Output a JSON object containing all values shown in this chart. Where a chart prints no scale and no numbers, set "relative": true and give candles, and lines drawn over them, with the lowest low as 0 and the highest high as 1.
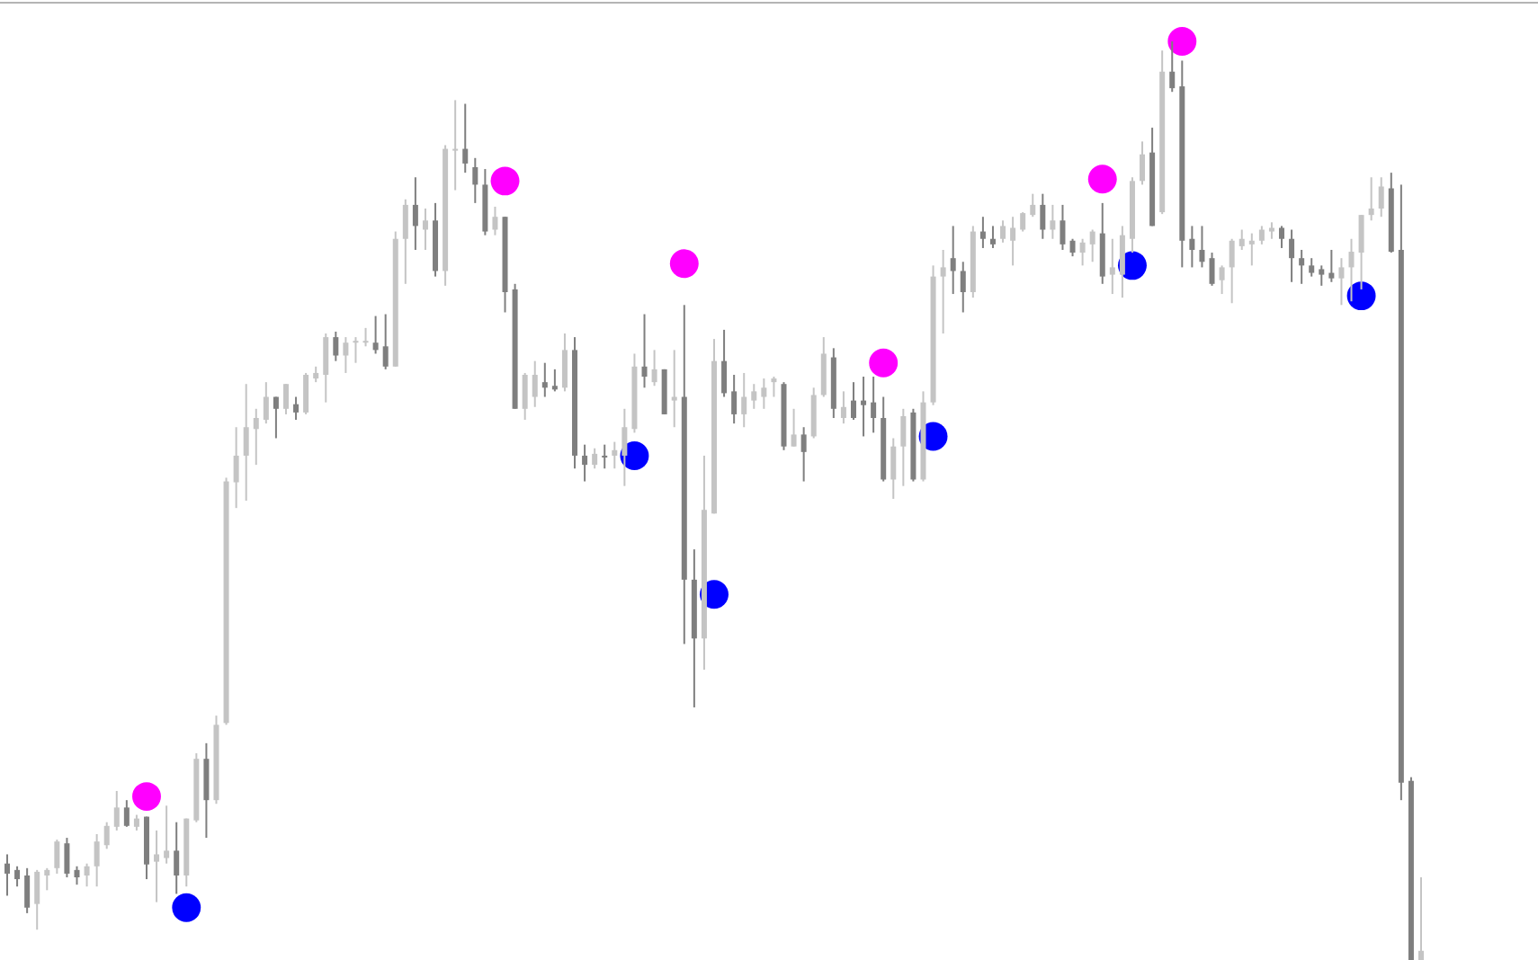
{
  "chart_data": {
    "type": "candlestick",
    "relative": true,
    "marker": "circle",
    "colors": [
      "#7f7f7f",
      "#7f7f7f",
      "#7f7f7f",
      "#c4c4c4",
      "#c4c4c4",
      "#c4c4c4",
      "#7f7f7f",
      "#7f7f7f",
      "#c4c4c4",
      "#c4c4c4",
      "#c4c4c4",
      "#c4c4c4",
      "#7f7f7f",
      "#c4c4c4",
      "#7f7f7f",
      "#c4c4c4",
      "#c4c4c4",
      "#7f7f7f",
      "#c4c4c4",
      "#c4c4c4",
      "#7f7f7f",
      "#c4c4c4",
      "#c4c4c4",
      "#c4c4c4",
      "#c4c4c4",
      "#c4c4c4",
      "#c4c4c4",
      "#7f7f7f",
      "#c4c4c4",
      "#7f7f7f",
      "#c4c4c4",
      "#c4c4c4",
      "#c4c4c4",
      "#7f7f7f",
      "#c4c4c4",
      "#c4c4c4",
      "#c4c4c4",
      "#7f7f7f",
      "#7f7f7f",
      "#c4c4c4",
      "#c4c4c4",
      "#7f7f7f",
      "#c4c4c4",
      "#7f7f7f",
      "#c4c4c4",
      "#c4c4c4",
      "#7f7f7f",
      "#7f7f7f",
      "#7f7f7f",
      "#c4c4c4",
      "#7f7f7f",
      "#7f7f7f",
      "#c4c4c4",
      "#c4c4c4",
      "#7f7f7f",
      "#7f7f7f",
      "#c4c4c4",
      "#7f7f7f",
      "#7f7f7f",
      "#c4c4c4",
      "#7f7f7f",
      "#c4c4c4",
      "#c4c4c4",
      "#c4c4c4",
      "#7f7f7f",
      "#c4c4c4",
      "#7f7f7f",
      "#c4c4c4",
      "#7f7f7f",
      "#7f7f7f",
      "#c4c4c4",
      "#c4c4c4",
      "#7f7f7f",
      "#7f7f7f",
      "#c4c4c4",
      "#c4c4c4",
      "#c4c4c4",
      "#c4c4c4",
      "#7f7f7f",
      "#c4c4c4",
      "#7f7f7f",
      "#c4c4c4",
      "#c4c4c4",
      "#7f7f7f",
      "#c4c4c4",
      "#7f7f7f",
      "#7f7f7f",
      "#7f7f7f",
      "#7f7f7f",
      "#c4c4c4",
      "#c4c4c4",
      "#7f7f7f",
      "#c4c4c4",
      "#c4c4c4",
      "#c4c4c4",
      "#7f7f7f",
      "#7f7f7f",
      "#c4c4c4",
      "#7f7f7f",
      "#7f7f7f",
      "#c4c4c4",
      "#c4c4c4",
      "#c4c4c4",
      "#c4c4c4",
      "#7f7f7f",
      "#c4c4c4",
      "#7f7f7f",
      "#7f7f7f",
      "#c4c4c4",
      "#c4c4c4",
      "#7f7f7f",
      "#c4c4c4",
      "#c4c4c4",
      "#c4c4c4",
      "#c4c4c4",
      "#7f7f7f",
      "#c4c4c4",
      "#7f7f7f",
      "#7f7f7f",
      "#7f7f7f",
      "#7f7f7f",
      "#7f7f7f",
      "#c4c4c4",
      "#c4c4c4",
      "#c4c4c4",
      "#c4c4c4",
      "#c4c4c4",
      "#c4c4c4",
      "#7f7f7f",
      "#7f7f7f",
      "#7f7f7f",
      "#7f7f7f",
      "#7f7f7f",
      "#7f7f7f",
      "#c4c4c4",
      "#c4c4c4",
      "#c4c4c4",
      "#c4c4c4",
      "#c4c4c4",
      "#7f7f7f",
      "#7f7f7f",
      "#7f7f7f",
      "#c4c4c4"
    ],
    "categories": [
      null,
      null,
      null,
      null,
      null,
      null,
      null,
      null,
      null,
      null,
      null,
      null,
      null,
      null,
      null,
      null,
      null,
      null,
      null,
      null,
      null,
      null,
      null,
      null,
      null,
      null,
      null,
      null,
      null,
      null,
      null,
      null,
      null,
      null,
      null,
      null,
      null,
      null,
      null,
      null,
      null,
      null,
      null,
      null,
      null,
      null,
      null,
      null,
      null,
      null,
      null,
      null,
      null,
      null,
      null,
      null,
      null,
      null,
      null,
      null,
      null,
      null,
      null,
      null,
      null,
      null,
      null,
      null,
      null,
      null,
      null,
      null,
      null,
      null,
      null,
      null,
      null,
      null,
      null,
      null,
      null,
      null,
      null,
      null,
      null,
      null,
      null,
      null,
      null,
      null,
      null,
      null,
      null,
      null,
      null,
      null,
      null,
      null,
      null,
      null,
      null,
      null,
      null,
      null,
      null,
      null,
      null,
      null,
      null,
      null,
      null,
      null,
      null,
      null,
      null,
      null,
      null,
      null,
      null,
      null,
      null,
      null,
      null,
      null,
      null,
      null,
      null,
      null,
      null,
      null,
      null,
      null,
      null,
      null,
      null,
      null,
      null,
      null,
      null,
      null,
      null,
      null,
      null
    ],
    "ohlc": [
      [
        0.105,
        0.115,
        0.07,
        0.094
      ],
      [
        0.098,
        0.102,
        0.08,
        0.088
      ],
      [
        0.092,
        0.1,
        0.051,
        0.057
      ],
      [
        0.061,
        0.098,
        0.033,
        0.096
      ],
      [
        0.092,
        0.1,
        0.076,
        0.098
      ],
      [
        0.1,
        0.131,
        0.094,
        0.129
      ],
      [
        0.127,
        0.133,
        0.09,
        0.094
      ],
      [
        0.098,
        0.102,
        0.082,
        0.09
      ],
      [
        0.092,
        0.105,
        0.08,
        0.102
      ],
      [
        0.102,
        0.137,
        0.08,
        0.129
      ],
      [
        0.125,
        0.15,
        0.121,
        0.146
      ],
      [
        0.145,
        0.184,
        0.141,
        0.166
      ],
      [
        0.166,
        0.174,
        0.145,
        0.146
      ],
      [
        0.145,
        0.158,
        0.141,
        0.154
      ],
      [
        0.156,
        0.156,
        0.088,
        0.104
      ],
      [
        0.107,
        0.141,
        0.063,
        0.115
      ],
      [
        0.111,
        0.168,
        0.105,
        0.119
      ],
      [
        0.119,
        0.15,
        0.072,
        0.092
      ],
      [
        0.092,
        0.154,
        0.08,
        0.154
      ],
      [
        0.152,
        0.225,
        0.15,
        0.219
      ],
      [
        0.219,
        0.236,
        0.133,
        0.174
      ],
      [
        0.174,
        0.266,
        0.17,
        0.256
      ],
      [
        0.258,
        0.525,
        0.256,
        0.521
      ],
      [
        0.52,
        0.58,
        0.492,
        0.549
      ],
      [
        0.549,
        0.627,
        0.5,
        0.58
      ],
      [
        0.578,
        0.6,
        0.539,
        0.59
      ],
      [
        0.588,
        0.629,
        0.584,
        0.613
      ],
      [
        0.613,
        0.613,
        0.568,
        0.6
      ],
      [
        0.6,
        0.627,
        0.594,
        0.627
      ],
      [
        0.605,
        0.613,
        0.588,
        0.596
      ],
      [
        0.596,
        0.639,
        0.594,
        0.637
      ],
      [
        0.633,
        0.646,
        0.629,
        0.639
      ],
      [
        0.637,
        0.682,
        0.607,
        0.678
      ],
      [
        0.678,
        0.684,
        0.652,
        0.658
      ],
      [
        0.658,
        0.678,
        0.639,
        0.672
      ],
      [
        0.672,
        0.678,
        0.65,
        0.674
      ],
      [
        0.672,
        0.688,
        0.668,
        0.674
      ],
      [
        0.672,
        0.701,
        0.66,
        0.664
      ],
      [
        0.668,
        0.703,
        0.643,
        0.646
      ],
      [
        0.646,
        0.793,
        0.646,
        0.785
      ],
      [
        0.785,
        0.828,
        0.736,
        0.822
      ],
      [
        0.822,
        0.852,
        0.773,
        0.799
      ],
      [
        0.795,
        0.818,
        0.773,
        0.805
      ],
      [
        0.805,
        0.824,
        0.744,
        0.75
      ],
      [
        0.75,
        0.887,
        0.734,
        0.883
      ],
      [
        0.881,
        0.936,
        0.838,
        0.883
      ],
      [
        0.883,
        0.932,
        0.857,
        0.867
      ],
      [
        0.863,
        0.873,
        0.824,
        0.844
      ],
      [
        0.844,
        0.861,
        0.789,
        0.793
      ],
      [
        0.795,
        0.82,
        0.789,
        0.809
      ],
      [
        0.809,
        0.809,
        0.705,
        0.727
      ],
      [
        0.73,
        0.736,
        0.6,
        0.6
      ],
      [
        0.6,
        0.639,
        0.588,
        0.637
      ],
      [
        0.613,
        0.652,
        0.602,
        0.637
      ],
      [
        0.629,
        0.65,
        0.613,
        0.623
      ],
      [
        0.625,
        0.643,
        0.619,
        0.621
      ],
      [
        0.623,
        0.682,
        0.619,
        0.664
      ],
      [
        0.664,
        0.678,
        0.535,
        0.549
      ],
      [
        0.549,
        0.561,
        0.521,
        0.539
      ],
      [
        0.539,
        0.557,
        0.535,
        0.551
      ],
      [
        0.549,
        0.561,
        0.535,
        0.547
      ],
      [
        0.549,
        0.564,
        0.535,
        0.555
      ],
      [
        0.549,
        0.6,
        0.516,
        0.58
      ],
      [
        0.578,
        0.66,
        0.574,
        0.646
      ],
      [
        0.646,
        0.703,
        0.623,
        0.635
      ],
      [
        0.629,
        0.664,
        0.625,
        0.643
      ],
      [
        0.643,
        0.643,
        0.594,
        0.594
      ],
      [
        0.609,
        0.664,
        0.58,
        0.613
      ],
      [
        0.613,
        0.713,
        0.344,
        0.414
      ],
      [
        0.414,
        0.447,
        0.275,
        0.35
      ],
      [
        0.35,
        0.549,
        0.316,
        0.49
      ],
      [
        0.486,
        0.676,
        0.486,
        0.652
      ],
      [
        0.652,
        0.686,
        0.613,
        0.617
      ],
      [
        0.619,
        0.637,
        0.584,
        0.594
      ],
      [
        0.594,
        0.639,
        0.58,
        0.613
      ],
      [
        0.609,
        0.627,
        0.6,
        0.619
      ],
      [
        0.613,
        0.633,
        0.6,
        0.623
      ],
      [
        0.629,
        0.635,
        0.613,
        0.633
      ],
      [
        0.627,
        0.629,
        0.555,
        0.559
      ],
      [
        0.559,
        0.6,
        0.559,
        0.572
      ],
      [
        0.572,
        0.58,
        0.521,
        0.553
      ],
      [
        0.57,
        0.623,
        0.568,
        0.615
      ],
      [
        0.615,
        0.678,
        0.613,
        0.66
      ],
      [
        0.656,
        0.666,
        0.59,
        0.6
      ],
      [
        0.59,
        0.619,
        0.584,
        0.602
      ],
      [
        0.609,
        0.629,
        0.588,
        0.59
      ],
      [
        0.609,
        0.635,
        0.57,
        0.604
      ],
      [
        0.607,
        0.635,
        0.574,
        0.59
      ],
      [
        0.59,
        0.613,
        0.521,
        0.523
      ],
      [
        0.523,
        0.568,
        0.502,
        0.559
      ],
      [
        0.559,
        0.6,
        0.516,
        0.592
      ],
      [
        0.596,
        0.6,
        0.521,
        0.523
      ],
      [
        0.523,
        0.619,
        0.521,
        0.607
      ],
      [
        0.607,
        0.756,
        0.604,
        0.744
      ],
      [
        0.744,
        0.773,
        0.682,
        0.754
      ],
      [
        0.764,
        0.799,
        0.725,
        0.75
      ],
      [
        0.75,
        0.76,
        0.705,
        0.727
      ],
      [
        0.727,
        0.799,
        0.721,
        0.793
      ],
      [
        0.793,
        0.809,
        0.775,
        0.785
      ],
      [
        0.785,
        0.799,
        0.775,
        0.779
      ],
      [
        0.785,
        0.805,
        0.781,
        0.799
      ],
      [
        0.783,
        0.809,
        0.756,
        0.797
      ],
      [
        0.795,
        0.814,
        0.793,
        0.813
      ],
      [
        0.811,
        0.834,
        0.809,
        0.822
      ],
      [
        0.822,
        0.834,
        0.785,
        0.795
      ],
      [
        0.795,
        0.822,
        0.785,
        0.805
      ],
      [
        0.805,
        0.822,
        0.773,
        0.779
      ],
      [
        0.783,
        0.785,
        0.766,
        0.77
      ],
      [
        0.77,
        0.785,
        0.756,
        0.781
      ],
      [
        0.779,
        0.795,
        0.76,
        0.793
      ],
      [
        0.791,
        0.824,
        0.736,
        0.744
      ],
      [
        0.746,
        0.785,
        0.725,
        0.754
      ],
      [
        0.746,
        0.799,
        0.721,
        0.789
      ],
      [
        0.785,
        0.852,
        0.77,
        0.848
      ],
      [
        0.848,
        0.891,
        0.844,
        0.877
      ],
      [
        0.879,
        0.906,
        0.799,
        0.799
      ],
      [
        0.814,
        0.99,
        0.812,
        0.967
      ],
      [
        0.967,
        1.0,
        0.945,
        0.949
      ],
      [
        0.951,
        0.979,
        0.754,
        0.783
      ],
      [
        0.785,
        0.799,
        0.754,
        0.773
      ],
      [
        0.773,
        0.799,
        0.754,
        0.76
      ],
      [
        0.764,
        0.77,
        0.734,
        0.736
      ],
      [
        0.74,
        0.756,
        0.725,
        0.754
      ],
      [
        0.754,
        0.785,
        0.715,
        0.783
      ],
      [
        0.777,
        0.795,
        0.773,
        0.785
      ],
      [
        0.779,
        0.791,
        0.756,
        0.783
      ],
      [
        0.783,
        0.799,
        0.779,
        0.795
      ],
      [
        0.793,
        0.803,
        0.785,
        0.797
      ],
      [
        0.797,
        0.799,
        0.775,
        0.785
      ],
      [
        0.785,
        0.795,
        0.738,
        0.764
      ],
      [
        0.764,
        0.773,
        0.736,
        0.756
      ],
      [
        0.756,
        0.764,
        0.744,
        0.748
      ],
      [
        0.752,
        0.756,
        0.734,
        0.746
      ],
      [
        0.748,
        0.773,
        0.738,
        0.742
      ],
      [
        0.742,
        0.764,
        0.713,
        0.754
      ],
      [
        0.754,
        0.785,
        0.717,
        0.771
      ],
      [
        0.77,
        0.811,
        0.73,
        0.811
      ],
      [
        0.811,
        0.852,
        0.805,
        0.818
      ],
      [
        0.818,
        0.852,
        0.809,
        0.842
      ],
      [
        0.84,
        0.857,
        0.77,
        0.771
      ],
      [
        0.773,
        0.844,
        0.174,
        0.193
      ],
      [
        0.195,
        0.199,
        0.0,
        0.0
      ],
      [
        0.0,
        0.09,
        0.0,
        0.01
      ]
    ],
    "series": [
      {
        "type": "scatter",
        "color": "#ff00ff",
        "values": [
          null,
          null,
          null,
          null,
          null,
          null,
          null,
          null,
          null,
          null,
          null,
          null,
          null,
          null,
          0.178,
          null,
          null,
          null,
          null,
          null,
          null,
          null,
          null,
          null,
          null,
          null,
          null,
          null,
          null,
          null,
          null,
          null,
          null,
          null,
          null,
          null,
          null,
          null,
          null,
          null,
          null,
          null,
          null,
          null,
          null,
          null,
          null,
          null,
          null,
          null,
          0.848,
          null,
          null,
          null,
          null,
          null,
          null,
          null,
          null,
          null,
          null,
          null,
          null,
          null,
          null,
          null,
          null,
          null,
          0.758,
          null,
          null,
          null,
          null,
          null,
          null,
          null,
          null,
          null,
          null,
          null,
          null,
          null,
          null,
          null,
          null,
          null,
          null,
          null,
          0.65,
          null,
          null,
          null,
          null,
          null,
          null,
          null,
          null,
          null,
          null,
          null,
          null,
          null,
          null,
          null,
          null,
          null,
          null,
          null,
          null,
          null,
          0.85,
          null,
          null,
          null,
          null,
          null,
          null,
          null,
          1.0,
          null,
          null,
          null,
          null,
          null,
          null,
          null,
          null,
          null,
          null,
          null,
          null,
          null,
          null,
          null,
          null,
          null,
          null,
          null,
          null,
          null,
          null,
          null,
          null
        ]
      },
      {
        "type": "scatter",
        "color": "#0000ff",
        "values": [
          null,
          null,
          null,
          null,
          null,
          null,
          null,
          null,
          null,
          null,
          null,
          null,
          null,
          null,
          null,
          null,
          null,
          null,
          0.057,
          null,
          null,
          null,
          null,
          null,
          null,
          null,
          null,
          null,
          null,
          null,
          null,
          null,
          null,
          null,
          null,
          null,
          null,
          null,
          null,
          null,
          null,
          null,
          null,
          null,
          null,
          null,
          null,
          null,
          null,
          null,
          null,
          null,
          null,
          null,
          null,
          null,
          null,
          null,
          null,
          null,
          null,
          null,
          null,
          0.549,
          null,
          null,
          null,
          null,
          null,
          null,
          null,
          0.398,
          null,
          null,
          null,
          null,
          null,
          null,
          null,
          null,
          null,
          null,
          null,
          null,
          null,
          null,
          null,
          null,
          null,
          null,
          null,
          null,
          null,
          0.57,
          null,
          null,
          null,
          null,
          null,
          null,
          null,
          null,
          null,
          null,
          null,
          null,
          null,
          null,
          null,
          null,
          null,
          null,
          null,
          0.756,
          null,
          null,
          null,
          null,
          null,
          null,
          null,
          null,
          null,
          null,
          null,
          null,
          null,
          null,
          null,
          null,
          null,
          null,
          null,
          null,
          null,
          null,
          0.723,
          null,
          null,
          null,
          null,
          null,
          null
        ]
      }
    ]
  }
}
